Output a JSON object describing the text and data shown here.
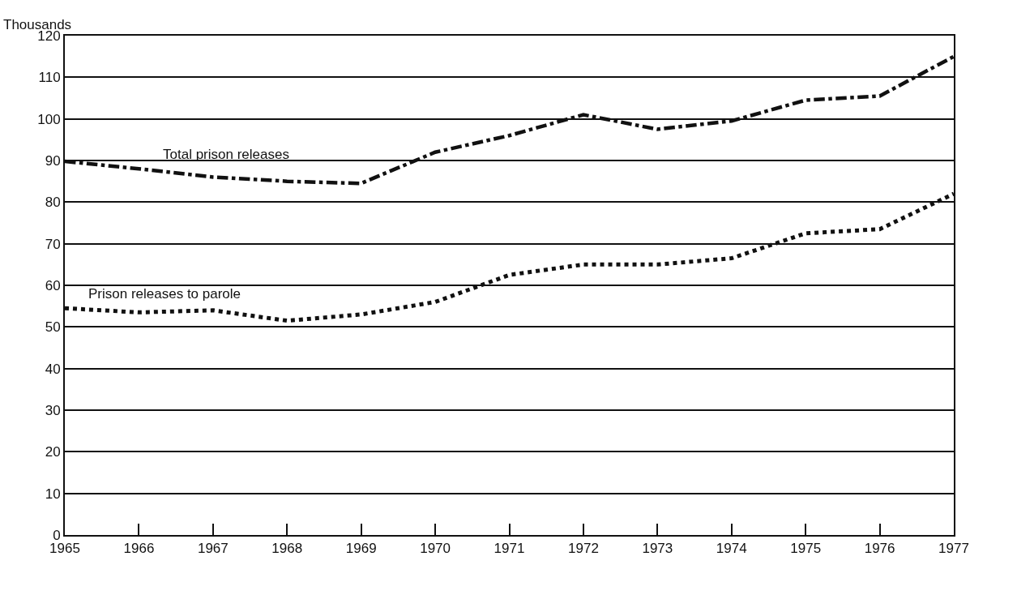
{
  "chart_data": {
    "type": "line",
    "ylabel": "Thousands",
    "x": [
      1965,
      1966,
      1967,
      1968,
      1969,
      1970,
      1971,
      1972,
      1973,
      1974,
      1975,
      1976,
      1977
    ],
    "series": [
      {
        "name": "Total prison releases",
        "color": "#111111",
        "line_style": "dashed",
        "values": [
          89.8,
          88,
          86,
          85,
          84.5,
          92,
          96,
          101,
          97.5,
          99.5,
          104.5,
          105.5,
          115
        ]
      },
      {
        "name": "Prison releases to parole",
        "color": "#111111",
        "line_style": "dotted",
        "values": [
          54.5,
          53.5,
          54,
          51.5,
          53,
          56,
          62.5,
          65,
          65,
          66.5,
          72.5,
          73.5,
          82
        ]
      }
    ],
    "xlim": [
      1965,
      1977
    ],
    "xticks": [
      1965,
      1966,
      1967,
      1968,
      1969,
      1970,
      1971,
      1972,
      1973,
      1974,
      1975,
      1976,
      1977
    ],
    "ylim": [
      0,
      120
    ],
    "yticks": [
      0,
      10,
      20,
      30,
      40,
      50,
      60,
      70,
      80,
      90,
      100,
      110,
      120
    ],
    "grid": "y",
    "legend": false,
    "marker": "none"
  }
}
